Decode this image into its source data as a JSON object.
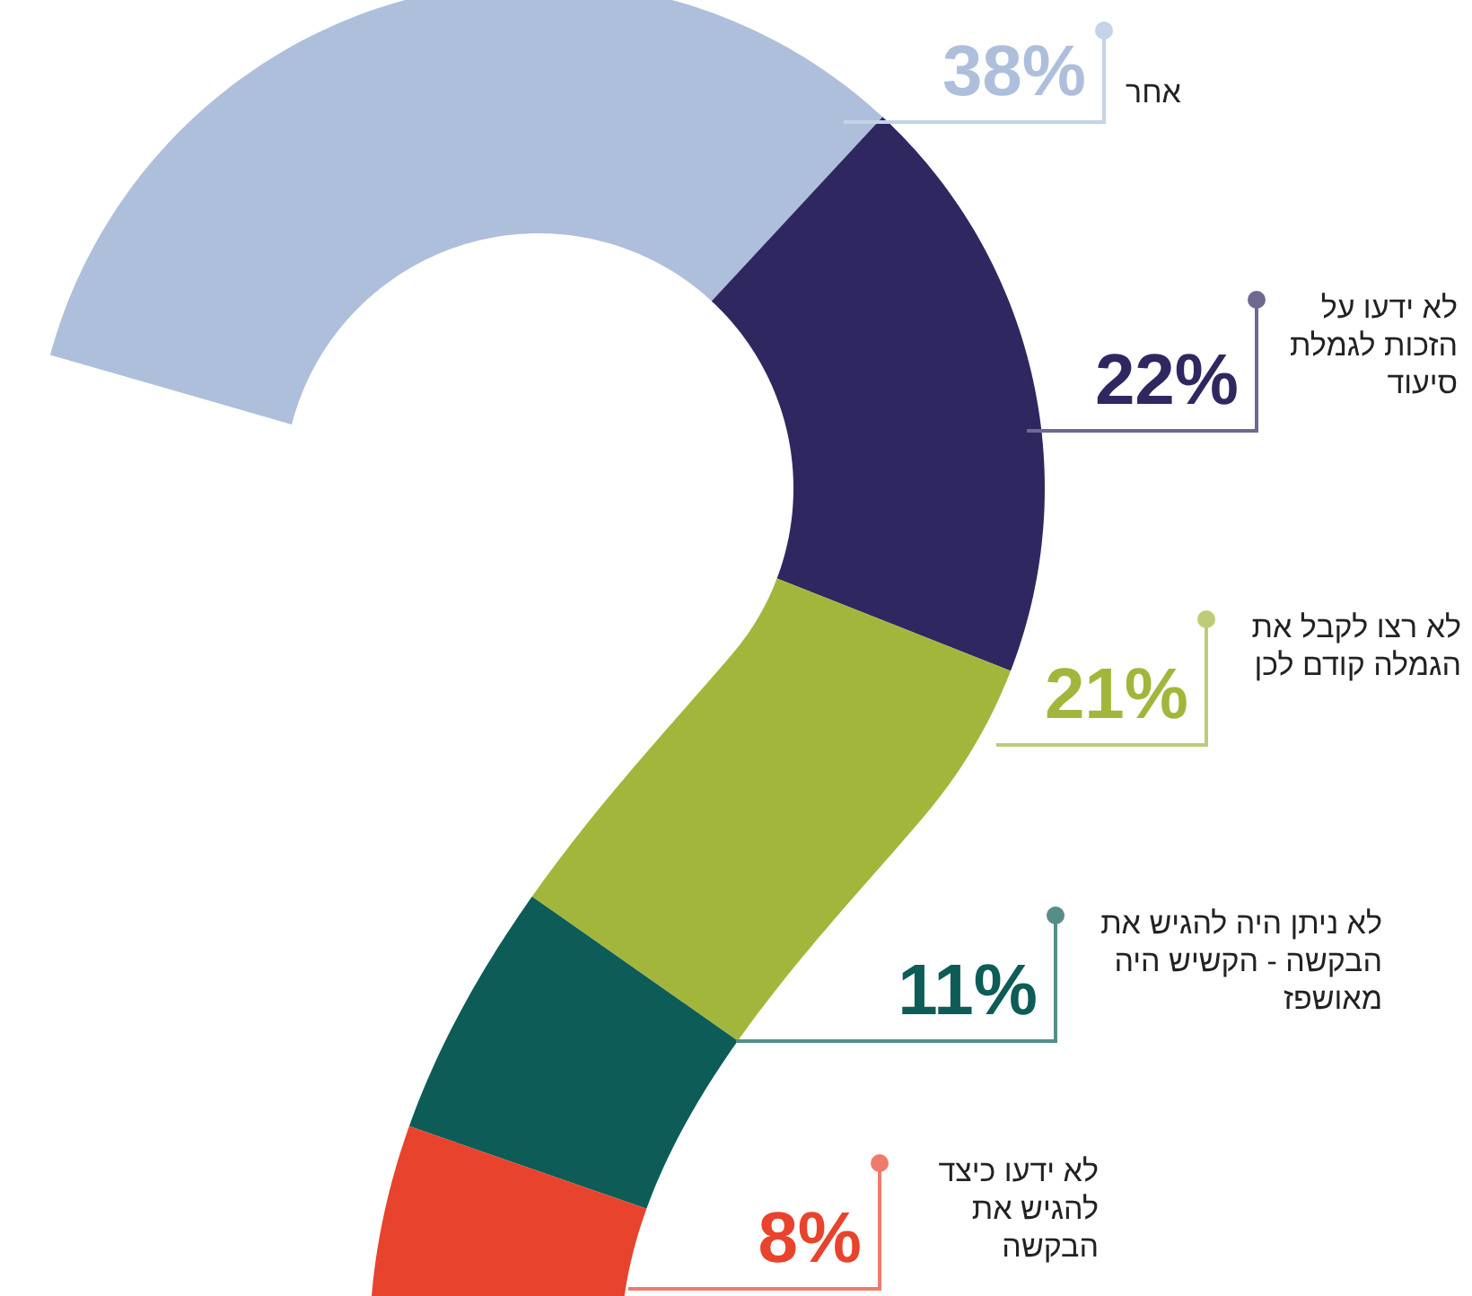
{
  "chart_data": {
    "type": "other",
    "categories": [
      "אחר",
      "לא ידעו על הזכות לגמלת סיעוד",
      "לא רצו לקבל את הגמלה קודם לכן",
      "לא ניתן היה להגיש את הבקשה - הקשיש היה מאושפז",
      "לא ידעו כיצד להגיש את הבקשה"
    ],
    "values": [
      38,
      22,
      21,
      11,
      8
    ],
    "value_labels": [
      "38%",
      "22%",
      "21%",
      "11%",
      "8%"
    ],
    "colors": [
      "#aebfdc",
      "#2f2860",
      "#a3b63c",
      "#0d5c57",
      "#e8432c"
    ]
  }
}
